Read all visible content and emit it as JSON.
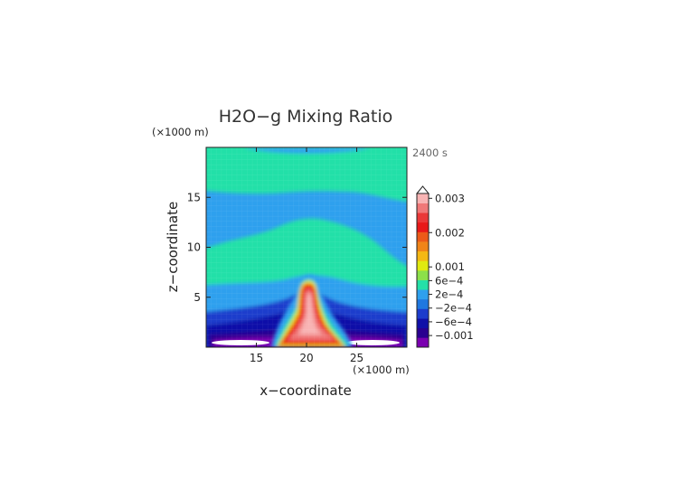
{
  "chart_data": {
    "type": "heatmap",
    "title": "H2O−g Mixing Ratio",
    "time_label": "2400 s",
    "xlabel": "x−coordinate",
    "ylabel": "z−coordinate",
    "x_units": "(×1000 m)",
    "y_units": "(×1000 m)",
    "xlim": [
      10,
      30
    ],
    "ylim": [
      0,
      20
    ],
    "x_ticks": [
      15,
      20,
      25
    ],
    "y_ticks": [
      5,
      10,
      15
    ],
    "x_tick_labels": [
      "15",
      "20",
      "25"
    ],
    "y_tick_labels": [
      "5",
      "10",
      "15"
    ],
    "colorbar": {
      "levels": [
        {
          "value": -0.0012,
          "color": "#7a00b0"
        },
        {
          "value": -0.001,
          "color": "#2a0090"
        },
        {
          "value": -0.0008,
          "color": "#1010a8"
        },
        {
          "value": -0.0006,
          "color": "#1c3ccc"
        },
        {
          "value": -0.0004,
          "color": "#1f78e0"
        },
        {
          "value": -0.0002,
          "color": "#2ea0ee"
        },
        {
          "value": 0,
          "color": "#24e0a8"
        },
        {
          "value": 0.0002,
          "color": "#8ce04a"
        },
        {
          "value": 0.0004,
          "color": "#e0ea10"
        },
        {
          "value": 0.0006,
          "color": "#f4b814"
        },
        {
          "value": 0.0008,
          "color": "#f08418"
        },
        {
          "value": 0.001,
          "color": "#ec5a18"
        },
        {
          "value": 0.0015,
          "color": "#e81818"
        },
        {
          "value": 0.002,
          "color": "#ea3838"
        },
        {
          "value": 0.0025,
          "color": "#f07878"
        },
        {
          "value": 0.003,
          "color": "#f8b4b4"
        }
      ],
      "tick_labels": [
        "0.003",
        "0.002",
        "0.001",
        "6e−4",
        "2e−4",
        "−2e−4",
        "−6e−4",
        "−0.001"
      ],
      "tick_values": [
        0.003,
        0.002,
        0.001,
        0.0006,
        0.0002,
        -0.0002,
        -0.0006,
        -0.001
      ]
    }
  }
}
